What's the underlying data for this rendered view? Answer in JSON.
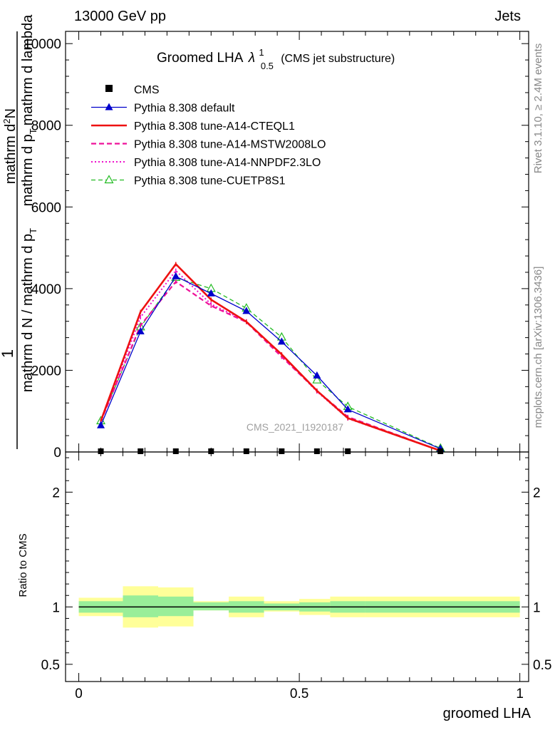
{
  "header": {
    "left": "13000 GeV pp",
    "right": "Jets"
  },
  "title": {
    "main": "Groomed LHA",
    "lambda": "λ",
    "sup": "1",
    "sub": "0.5",
    "suffix": "(CMS jet substructure)"
  },
  "side_labels": {
    "rivet": "Rivet 3.1.10, ≥ 2.4M events",
    "mcplots": "mcplots.cern.ch [arXiv:1306.3436]"
  },
  "watermark": "CMS_2021_I1920187",
  "main_ylabel": {
    "numerator_one": "1",
    "denominator_line1": "mathrm d N / mathrm d p",
    "denominator_sub1": "T",
    "numerator_line": "mathrm d",
    "numerator_sup": "2",
    "numerator_N": "N",
    "denominator_line2": "mathrm d p",
    "denominator_sub2": "T",
    "denominator_line3": "mathrm d lambda"
  },
  "ratio_ylabel": "Ratio to CMS",
  "xlabel": "groomed LHA",
  "legend": [
    {
      "label": "CMS",
      "color": "#000000",
      "style": "data"
    },
    {
      "label": "Pythia 8.308 default",
      "color": "#0000cc",
      "style": "solid-tri"
    },
    {
      "label": "Pythia 8.308 tune-A14-CTEQL1",
      "color": "#ee1111",
      "style": "solid-thick"
    },
    {
      "label": "Pythia 8.308 tune-A14-MSTW2008LO",
      "color": "#ee1199",
      "style": "dashed"
    },
    {
      "label": "Pythia 8.308 tune-A14-NNPDF2.3LO",
      "color": "#ee11cc",
      "style": "dotted"
    },
    {
      "label": "Pythia 8.308 tune-CUETP8S1",
      "color": "#22bb22",
      "style": "dashed-opentri"
    }
  ],
  "chart_data": {
    "type": "line",
    "main": {
      "ylim": [
        0,
        10300
      ],
      "yticks": [
        0,
        2000,
        4000,
        6000,
        8000,
        10000
      ],
      "ytick_labels": [
        "0",
        "2000",
        "4000",
        "6000",
        "8000",
        "10000"
      ]
    },
    "ratio": {
      "ylim": [
        0.35,
        2.35
      ],
      "yticks": [
        0.5,
        1,
        2
      ],
      "ytick_labels": [
        "0.5",
        "1",
        "2"
      ]
    },
    "x": [
      0.05,
      0.14,
      0.22,
      0.3,
      0.38,
      0.46,
      0.54,
      0.61,
      0.82
    ],
    "xlim": [
      -0.03,
      1.02
    ],
    "xticks": [
      0,
      0.5,
      1
    ],
    "xtick_labels": [
      "0",
      "0.5",
      "1"
    ],
    "bin_edges": [
      0.0,
      0.1,
      0.18,
      0.26,
      0.34,
      0.42,
      0.5,
      0.57,
      0.65,
      1.0
    ],
    "cms": [
      0,
      0,
      0,
      0,
      0,
      0,
      0,
      0,
      0
    ],
    "series": [
      {
        "name": "Pythia 8.308 default",
        "values": [
          650,
          2950,
          4300,
          3880,
          3450,
          2700,
          1870,
          1040,
          80
        ]
      },
      {
        "name": "Pythia 8.308 tune-A14-CTEQL1",
        "values": [
          760,
          3430,
          4600,
          3730,
          3190,
          2390,
          1500,
          830,
          30
        ]
      },
      {
        "name": "Pythia 8.308 tune-A14-MSTW2008LO",
        "values": [
          750,
          3100,
          4170,
          3580,
          3180,
          2330,
          1500,
          860,
          30
        ]
      },
      {
        "name": "Pythia 8.308 tune-A14-NNPDF2.3LO",
        "values": [
          740,
          3300,
          4440,
          3620,
          3200,
          2370,
          1480,
          820,
          30
        ]
      },
      {
        "name": "Pythia 8.308 tune-CUETP8S1",
        "values": [
          760,
          3060,
          4270,
          4000,
          3520,
          2810,
          1760,
          1110,
          90
        ]
      }
    ],
    "ratio_bands": {
      "inner": [
        [
          0.95,
          1.05
        ],
        [
          0.95,
          1.05
        ],
        [
          0.91,
          1.1
        ],
        [
          0.92,
          1.09
        ],
        [
          0.97,
          1.04
        ],
        [
          0.95,
          1.05
        ],
        [
          0.97,
          1.03
        ],
        [
          0.96,
          1.04
        ],
        [
          0.95,
          1.05
        ],
        [
          0.95,
          1.05
        ]
      ],
      "outer": [
        [
          0.92,
          1.08
        ],
        [
          0.92,
          1.08
        ],
        [
          0.82,
          1.18
        ],
        [
          0.83,
          1.17
        ],
        [
          0.97,
          1.05
        ],
        [
          0.91,
          1.09
        ],
        [
          0.96,
          1.05
        ],
        [
          0.93,
          1.07
        ],
        [
          0.91,
          1.09
        ],
        [
          0.91,
          1.09
        ]
      ]
    },
    "band_edges": [
      0.0,
      0.05,
      0.1,
      0.18,
      0.26,
      0.34,
      0.42,
      0.5,
      0.57,
      0.65,
      1.0
    ],
    "band_colors": {
      "inner": "#99ee99",
      "outer": "#ffff99"
    }
  }
}
